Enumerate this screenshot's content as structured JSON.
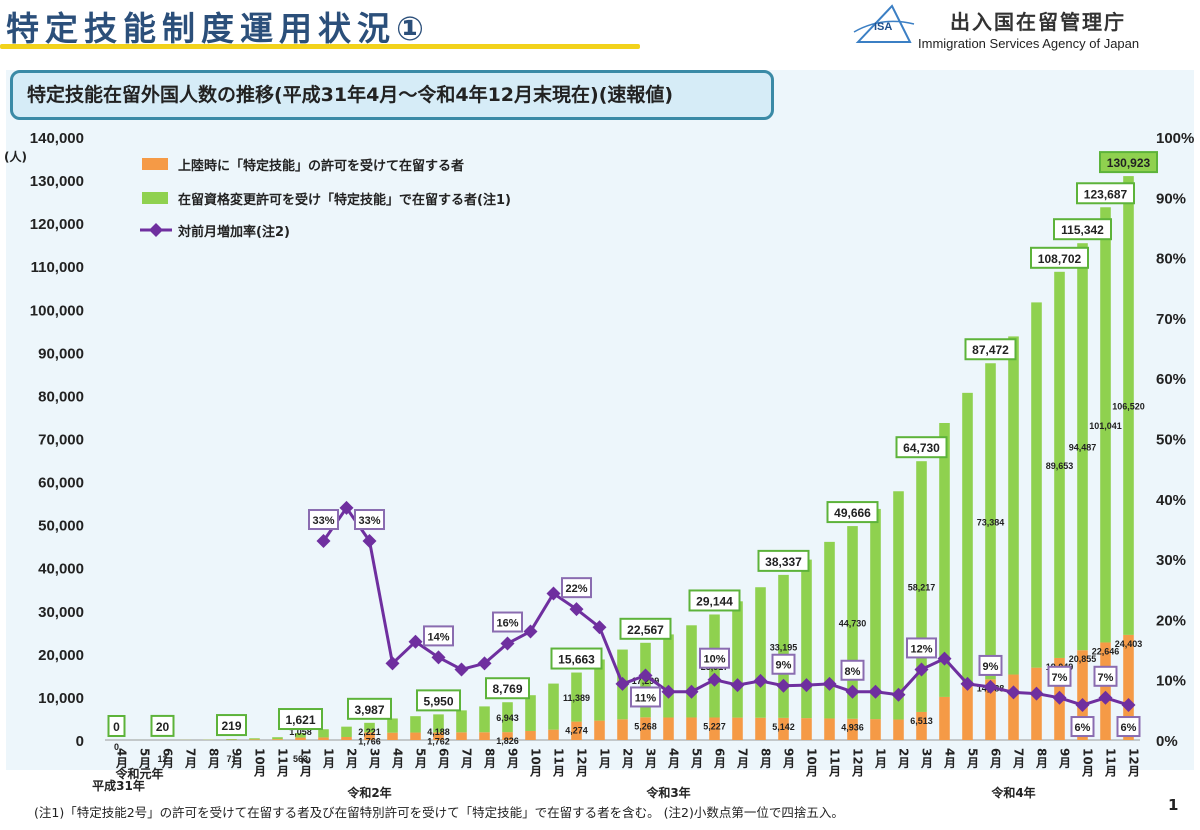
{
  "header": {
    "title": "特定技能制度運用状況①",
    "agency_jp": "出入国在留管理庁",
    "agency_en": "Immigration Services Agency of Japan",
    "logo_text": "ISA"
  },
  "subtitle": "特定技能在留外国人数の推移(平成31年4月～令和4年12月末現在)(速報値)",
  "footnote": "(注1)「特定技能2号」の許可を受けて在留する者及び在留特別許可を受けて「特定技能」で在留する者を含む。 (注2)小数点第一位で四捨五入。",
  "page_number": "1",
  "colors": {
    "orange": "#f59a46",
    "green": "#8fd14f",
    "purple": "#6f2f9f",
    "total_label_border": "#5db33a"
  },
  "chart_data": {
    "type": "bar",
    "stacked": true,
    "y_unit": "(人)",
    "ylim": [
      0,
      140000
    ],
    "y_ticks": [
      "0",
      "10,000",
      "20,000",
      "30,000",
      "40,000",
      "50,000",
      "60,000",
      "70,000",
      "80,000",
      "90,000",
      "100,000",
      "110,000",
      "120,000",
      "130,000",
      "140,000"
    ],
    "y2lim": [
      0,
      100
    ],
    "y2_ticks": [
      "0%",
      "10%",
      "20%",
      "30%",
      "40%",
      "50%",
      "60%",
      "70%",
      "80%",
      "90%",
      "100%"
    ],
    "categories": [
      "4月",
      "5月",
      "6月",
      "7月",
      "8月",
      "9月",
      "10月",
      "11月",
      "12月",
      "1月",
      "2月",
      "3月",
      "4月",
      "5月",
      "6月",
      "7月",
      "8月",
      "9月",
      "10月",
      "11月",
      "12月",
      "1月",
      "2月",
      "3月",
      "4月",
      "5月",
      "6月",
      "7月",
      "8月",
      "9月",
      "10月",
      "11月",
      "12月",
      "1月",
      "2月",
      "3月",
      "4月",
      "5月",
      "6月",
      "7月",
      "8月",
      "9月",
      "10月",
      "11月",
      "12月"
    ],
    "year_labels": [
      {
        "text": "平成31年",
        "index": 0
      },
      {
        "text": "令和元年",
        "index": 1
      },
      {
        "text": "令和2年",
        "index": 11
      },
      {
        "text": "令和3年",
        "index": 24
      },
      {
        "text": "令和4年",
        "index": 39
      }
    ],
    "legend": [
      {
        "text": "上陸時に「特定技能」の許可を受けて在留する者",
        "kind": "bar",
        "color": "#f59a46"
      },
      {
        "text": "在留資格変更許可を受け「特定技能」で在留する者(注1)",
        "kind": "bar",
        "color": "#8fd14f"
      },
      {
        "text": "対前月増加率(注2)",
        "kind": "line",
        "color": "#6f2f9f"
      }
    ],
    "series": [
      {
        "name": "上陸時に「特定技能」の許可を受けて在留する者",
        "values": [
          0,
          0,
          12,
          20,
          40,
          71,
          130,
          200,
          563,
          600,
          700,
          1766,
          1700,
          1730,
          1762,
          1780,
          1800,
          1826,
          2100,
          2400,
          4274,
          4500,
          4800,
          5268,
          5220,
          5230,
          5227,
          5200,
          5170,
          5142,
          5080,
          5000,
          4936,
          4850,
          4750,
          6513,
          10000,
          12500,
          14088,
          15200,
          16800,
          19049,
          20855,
          22646,
          24403
        ]
      },
      {
        "name": "在留資格変更許可を受け「特定技能」で在留する者(注1)",
        "values": [
          0,
          8,
          8,
          30,
          60,
          148,
          270,
          450,
          1058,
          1900,
          2400,
          2221,
          3300,
          3800,
          4188,
          5100,
          6000,
          6943,
          8300,
          10700,
          11389,
          14200,
          16200,
          17299,
          19300,
          21400,
          23917,
          27000,
          30300,
          33195,
          36800,
          41000,
          44730,
          48800,
          53000,
          58217,
          63600,
          68100,
          73384,
          78500,
          84800,
          89653,
          94487,
          101041,
          106520
        ]
      },
      {
        "name": "対前月増加率(注2)",
        "values": [
          null,
          null,
          null,
          null,
          null,
          null,
          null,
          null,
          null,
          33,
          38.5,
          33,
          12.7,
          16.3,
          13.7,
          11.7,
          12.7,
          16,
          18,
          24.3,
          21.7,
          18.7,
          9.3,
          10.7,
          8,
          8,
          10,
          9.1,
          9.8,
          9,
          9.1,
          9.3,
          8,
          8,
          7.5,
          11.7,
          13.5,
          9.3,
          8.8,
          7.9,
          7.7,
          7,
          5.8,
          7,
          5.8
        ]
      }
    ],
    "totals": [
      {
        "index": 0,
        "text": "0"
      },
      {
        "index": 2,
        "text": "20"
      },
      {
        "index": 5,
        "text": "219"
      },
      {
        "index": 8,
        "text": "1,621"
      },
      {
        "index": 11,
        "text": "3,987"
      },
      {
        "index": 14,
        "text": "5,950"
      },
      {
        "index": 17,
        "text": "8,769"
      },
      {
        "index": 20,
        "text": "15,663"
      },
      {
        "index": 23,
        "text": "22,567"
      },
      {
        "index": 26,
        "text": "29,144"
      },
      {
        "index": 29,
        "text": "38,337"
      },
      {
        "index": 32,
        "text": "49,666"
      },
      {
        "index": 35,
        "text": "64,730"
      },
      {
        "index": 38,
        "text": "87,472"
      },
      {
        "index": 41,
        "text": "108,702"
      },
      {
        "index": 42,
        "text": "115,342"
      },
      {
        "index": 43,
        "text": "123,687"
      },
      {
        "index": 44,
        "text": "130,923"
      }
    ],
    "green_labels": [
      {
        "index": 2,
        "text": "8"
      },
      {
        "index": 5,
        "text": "148"
      },
      {
        "index": 8,
        "text": "1,058"
      },
      {
        "index": 11,
        "text": "2,221"
      },
      {
        "index": 14,
        "text": "4,188"
      },
      {
        "index": 17,
        "text": "6,943"
      },
      {
        "index": 20,
        "text": "11,389"
      },
      {
        "index": 23,
        "text": "17,299"
      },
      {
        "index": 26,
        "text": "23,917"
      },
      {
        "index": 29,
        "text": "33,195"
      },
      {
        "index": 32,
        "text": "44,730"
      },
      {
        "index": 35,
        "text": "58,217"
      },
      {
        "index": 38,
        "text": "73,384"
      },
      {
        "index": 41,
        "text": "89,653"
      },
      {
        "index": 42,
        "text": "94,487"
      },
      {
        "index": 43,
        "text": "101,041"
      },
      {
        "index": 44,
        "text": "106,520"
      }
    ],
    "orange_labels": [
      {
        "index": 0,
        "text": "0"
      },
      {
        "index": 2,
        "text": "12"
      },
      {
        "index": 5,
        "text": "71"
      },
      {
        "index": 8,
        "text": "563"
      },
      {
        "index": 11,
        "text": "1,766"
      },
      {
        "index": 14,
        "text": "1,762"
      },
      {
        "index": 17,
        "text": "1,826"
      },
      {
        "index": 20,
        "text": "4,274"
      },
      {
        "index": 23,
        "text": "5,268"
      },
      {
        "index": 26,
        "text": "5,227"
      },
      {
        "index": 29,
        "text": "5,142"
      },
      {
        "index": 32,
        "text": "4,936"
      },
      {
        "index": 35,
        "text": "6,513"
      },
      {
        "index": 38,
        "text": "14,088"
      },
      {
        "index": 41,
        "text": "19,049"
      },
      {
        "index": 42,
        "text": "20,855"
      },
      {
        "index": 43,
        "text": "22,646"
      },
      {
        "index": 44,
        "text": "24,403"
      }
    ],
    "rate_labels": [
      {
        "index": 9,
        "text": "33%",
        "pos": "above"
      },
      {
        "index": 11,
        "text": "33%",
        "pos": "above"
      },
      {
        "index": 14,
        "text": "14%",
        "pos": "above"
      },
      {
        "index": 17,
        "text": "16%",
        "pos": "above"
      },
      {
        "index": 20,
        "text": "22%",
        "pos": "above"
      },
      {
        "index": 23,
        "text": "11%",
        "pos": "below"
      },
      {
        "index": 26,
        "text": "10%",
        "pos": "above"
      },
      {
        "index": 29,
        "text": "9%",
        "pos": "above"
      },
      {
        "index": 32,
        "text": "8%",
        "pos": "above"
      },
      {
        "index": 35,
        "text": "12%",
        "pos": "above"
      },
      {
        "index": 38,
        "text": "9%",
        "pos": "above"
      },
      {
        "index": 41,
        "text": "7%",
        "pos": "above"
      },
      {
        "index": 42,
        "text": "6%",
        "pos": "below"
      },
      {
        "index": 43,
        "text": "7%",
        "pos": "above"
      },
      {
        "index": 44,
        "text": "6%",
        "pos": "below"
      }
    ]
  }
}
